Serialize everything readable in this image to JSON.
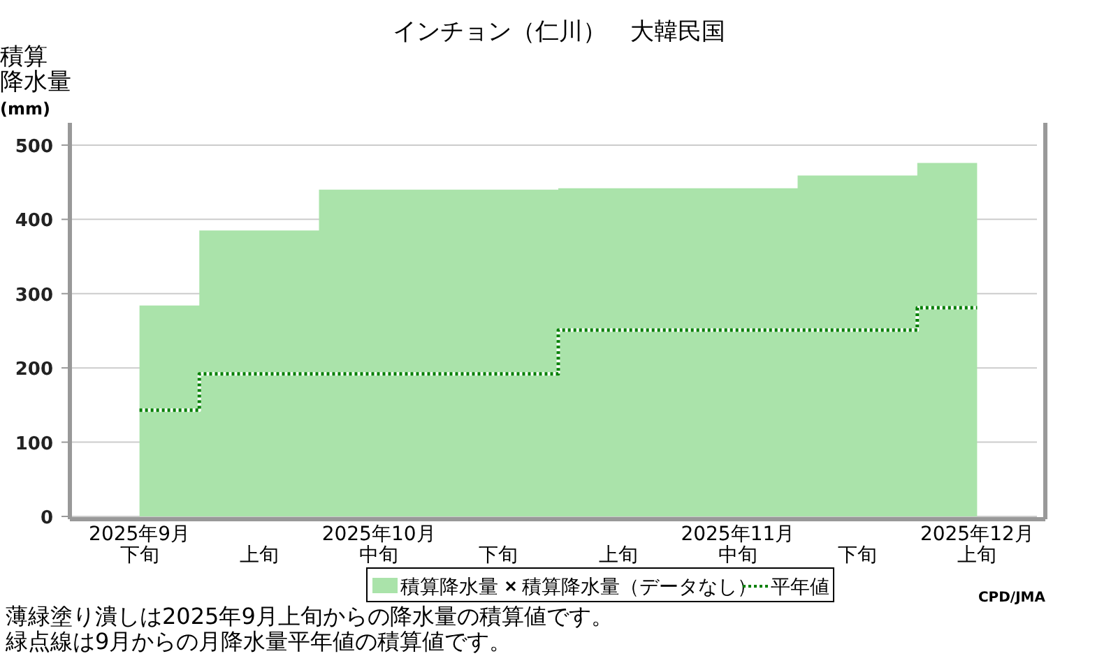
{
  "chart_data": {
    "type": "area",
    "title": "インチョン（仁川）　大韓民国",
    "ylabel": "積算降水量(mm)",
    "categories": [
      "2025年9月下旬",
      "上旬",
      "2025年10月中旬",
      "下旬",
      "上旬",
      "2025年11月中旬",
      "下旬",
      "2025年12月上旬"
    ],
    "series": [
      {
        "name": "積算降水量",
        "color": "#aae3aa",
        "values": [
          284,
          385,
          440,
          440,
          442,
          442,
          459,
          476
        ]
      },
      {
        "name": "積算降水量（データなし）",
        "type": "scatter",
        "marker": "cross",
        "color": "#000000",
        "values": [
          null,
          null,
          null,
          null,
          null,
          null,
          null,
          null
        ]
      },
      {
        "name": "平年値",
        "type": "step",
        "line_style": "dotted",
        "color": "#008000",
        "values": [
          143,
          192,
          192,
          192,
          251,
          251,
          251,
          281
        ]
      }
    ],
    "ylim": [
      0,
      530
    ],
    "yticks": [
      0,
      100,
      200,
      300,
      400,
      500
    ],
    "grid": "y",
    "legend": "bottom",
    "annotations": [
      "薄緑塗り潰しは2025年9月上旬からの降水量の積算値です。",
      "緑点線は9月からの月降水量平年値の積算値です。",
      "CPD/JMA"
    ]
  }
}
